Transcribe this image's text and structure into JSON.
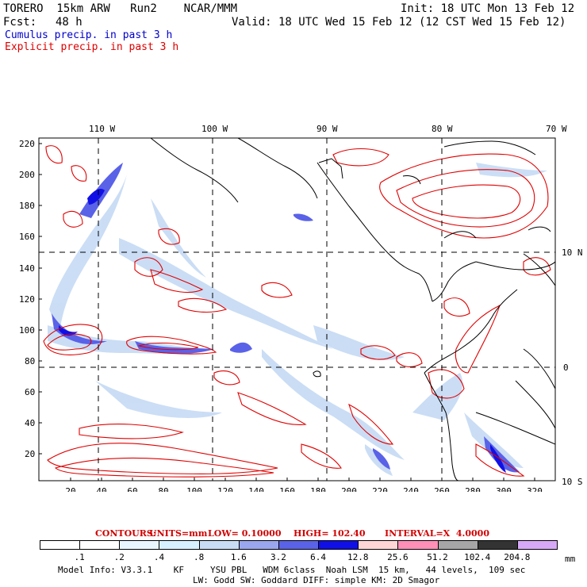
{
  "header": {
    "model": "TORERO  15km ARW   Run2    NCAR/MMM",
    "init": "Init: 18 UTC Mon 13 Feb 12",
    "fcst_label": "Fcst:",
    "fcst_value": "48 h",
    "valid": "Valid: 18 UTC Wed 15 Feb 12 (12 CST Wed 15 Feb 12)"
  },
  "legend": {
    "cumulus": "Cumulus precip. in past 3 h",
    "explicit": "Explicit precip. in past 3 h",
    "cumulus_color": "#0000cc",
    "explicit_color": "#e00000"
  },
  "map": {
    "top_lon_labels": [
      "110 W",
      "100 W",
      "90 W",
      "80 W",
      "70 W"
    ],
    "right_lat_labels": [
      "10 N",
      "0",
      "10 S"
    ],
    "x_ticks": [
      "20",
      "40",
      "60",
      "80",
      "100",
      "120",
      "140",
      "160",
      "180",
      "200",
      "220",
      "240",
      "260",
      "280",
      "300",
      "320"
    ],
    "y_ticks": [
      "20",
      "40",
      "60",
      "80",
      "100",
      "120",
      "140",
      "160",
      "180",
      "200",
      "220"
    ],
    "explicit_contour_color": "#e00000",
    "land_line_color": "#000000"
  },
  "contour_info": {
    "contours": "CONTOURS:",
    "units": "UNITS=mm",
    "low": "LOW= 0.10000",
    "high": "HIGH= 102.40",
    "interval": "INTERVAL=X  4.0000"
  },
  "colorbar": {
    "labels": [
      ".1",
      ".2",
      ".4",
      ".8",
      "1.6",
      "3.2",
      "6.4",
      "12.8",
      "25.6",
      "51.2",
      "102.4",
      "204.8"
    ],
    "colors": [
      "#ffffff",
      "#ffffff",
      "#eaf6ff",
      "#d6f0ff",
      "#c8dcf5",
      "#9aa6ee",
      "#5a62e8",
      "#1010e6",
      "#ffd6d6",
      "#ff8fb6",
      "#a6a6a6",
      "#333333",
      "#d8a8f8"
    ],
    "unit": "mm"
  },
  "footer": {
    "line1": "Model Info: V3.3.1    KF     YSU PBL   WDM 6class  Noah LSM  15 km,   44 levels,  109 sec",
    "line2": "LW: Godd SW: Goddard DIFF: simple KM: 2D Smagor"
  }
}
